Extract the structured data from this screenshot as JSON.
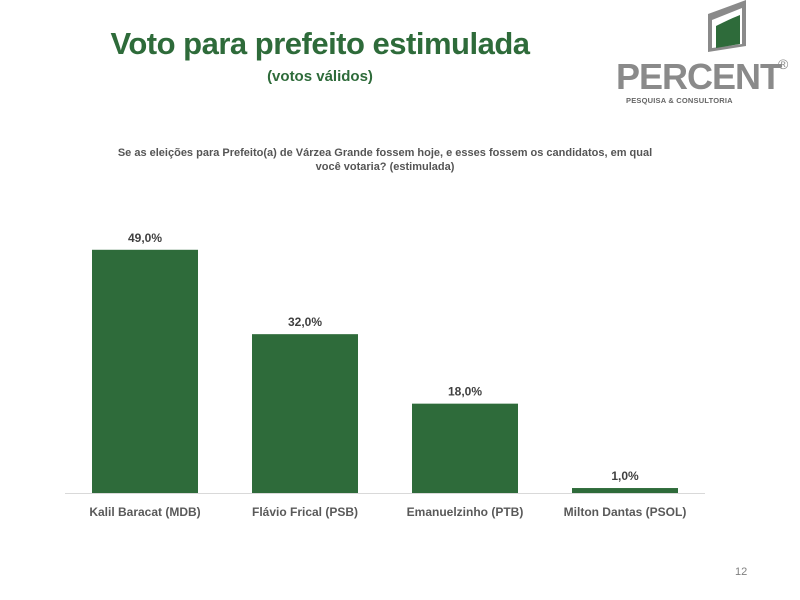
{
  "header": {
    "title": "Voto para prefeito estimulada",
    "subtitle": "(votos válidos)"
  },
  "logo": {
    "word": "PERCENT",
    "registered": "®",
    "tagline": "PESQUISA & CONSULTORIA",
    "colors": {
      "green": "#2e6b3a",
      "gray": "#8a8a8a"
    }
  },
  "question": "Se as eleições para Prefeito(a) de Várzea Grande fossem hoje, e esses fossem os candidatos, em qual você votaria? (estimulada)",
  "chart_data": {
    "type": "bar",
    "categories": [
      "Kalil Baracat (MDB)",
      "Flávio Frical (PSB)",
      "Emanuelzinho (PTB)",
      "Milton Dantas (PSOL)"
    ],
    "values": [
      49.0,
      32.0,
      18.0,
      1.0
    ],
    "data_labels": [
      "49,0%",
      "32,0%",
      "18,0%",
      "1,0%"
    ],
    "bar_color": "#2e6b3a",
    "ylim": [
      0,
      55
    ],
    "grid": false,
    "legend": "none"
  },
  "footer": {
    "page_number": "12"
  }
}
